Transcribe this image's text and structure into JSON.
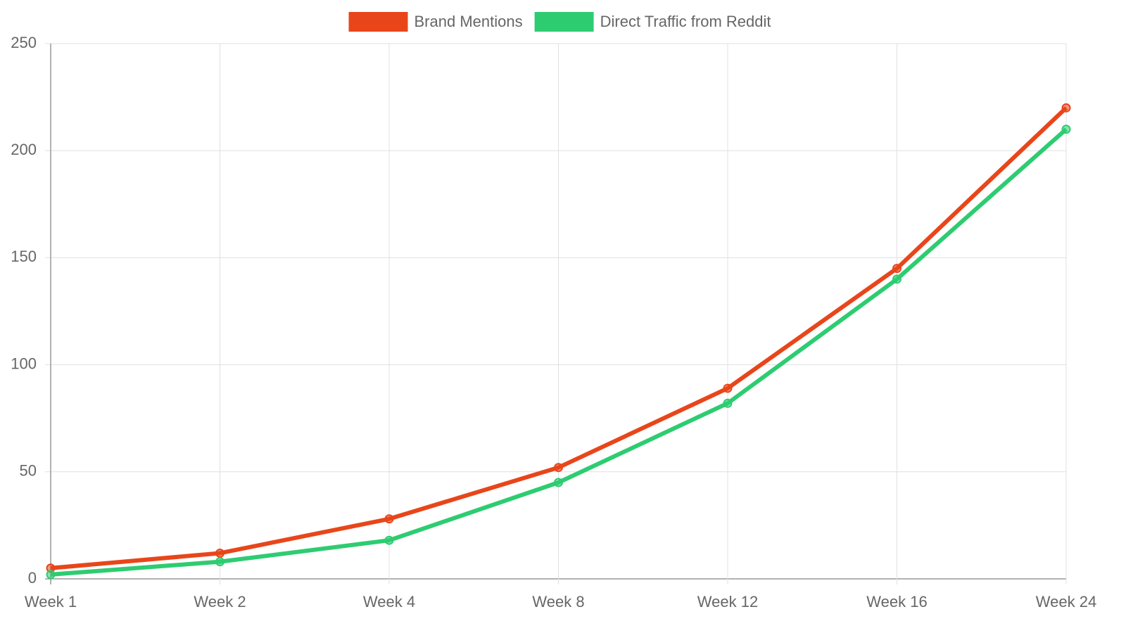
{
  "chart_data": {
    "type": "line",
    "categories": [
      "Week 1",
      "Week 2",
      "Week 4",
      "Week 8",
      "Week 12",
      "Week 16",
      "Week 24"
    ],
    "series": [
      {
        "name": "Brand Mentions",
        "color": "#e8461a",
        "values": [
          5,
          12,
          28,
          52,
          89,
          145,
          220
        ]
      },
      {
        "name": "Direct Traffic from Reddit",
        "color": "#2ecc71",
        "values": [
          2,
          8,
          18,
          45,
          82,
          140,
          210
        ]
      }
    ],
    "ylim": [
      0,
      250
    ],
    "yticks": [
      0,
      50,
      100,
      150,
      200,
      250
    ],
    "grid": true,
    "legend": "top"
  }
}
